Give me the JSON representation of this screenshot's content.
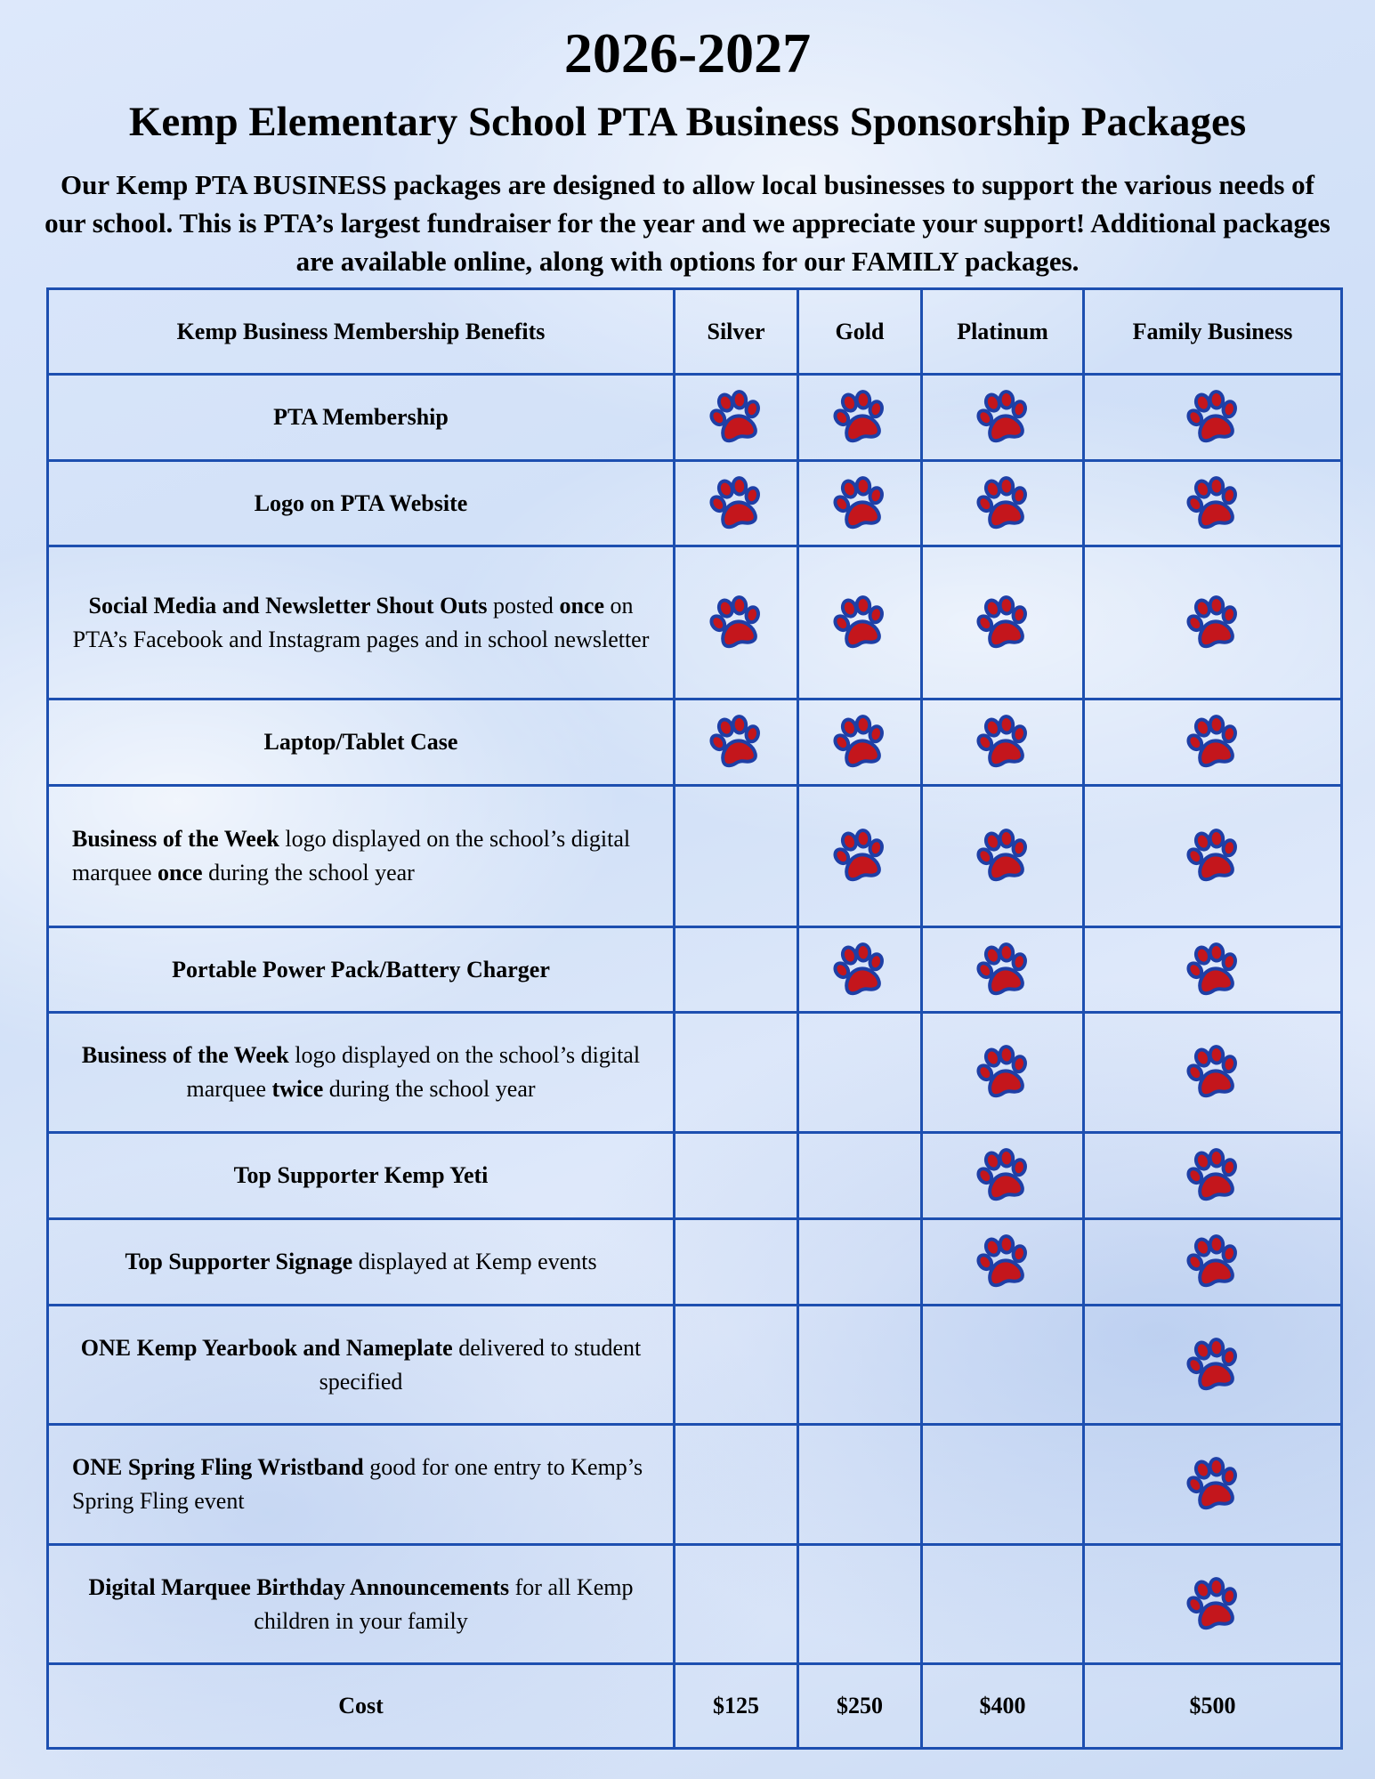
{
  "header": {
    "title": "2026-2027",
    "subtitle": "Kemp Elementary School PTA Business Sponsorship Packages",
    "intro": "Our Kemp PTA BUSINESS packages are designed to allow local businesses to support the various needs of our school. This is PTA’s largest fundraiser for the year and we appreciate your support! Additional packages are available online, along with options for our FAMILY packages."
  },
  "table": {
    "header": [
      "Kemp Business Membership Benefits",
      "Silver",
      "Gold",
      "Platinum",
      "Family Business"
    ],
    "rows": [
      {
        "parts": [
          {
            "text": "PTA Membership",
            "bold": true
          }
        ],
        "included": [
          true,
          true,
          true,
          true
        ]
      },
      {
        "parts": [
          {
            "text": "Logo on PTA Website",
            "bold": true
          }
        ],
        "included": [
          true,
          true,
          true,
          true
        ]
      },
      {
        "parts": [
          {
            "text": "Social Media and Newsletter Shout Outs",
            "bold": true
          },
          {
            "text": " posted ",
            "bold": false
          },
          {
            "text": "once",
            "bold": true
          },
          {
            "text": " on PTA’s Facebook and Instagram pages and in school newsletter",
            "bold": false
          }
        ],
        "included": [
          true,
          true,
          true,
          true
        ]
      },
      {
        "parts": [
          {
            "text": "Laptop/Tablet Case",
            "bold": true
          }
        ],
        "included": [
          true,
          true,
          true,
          true
        ]
      },
      {
        "parts": [
          {
            "text": "Business of the Week",
            "bold": true
          },
          {
            "text": " logo displayed on the school’s digital marquee ",
            "bold": false
          },
          {
            "text": "once",
            "bold": true
          },
          {
            "text": " during the school year",
            "bold": false
          }
        ],
        "align": "left",
        "included": [
          false,
          true,
          true,
          true
        ]
      },
      {
        "parts": [
          {
            "text": "Portable Power Pack/Battery Charger",
            "bold": true
          }
        ],
        "included": [
          false,
          true,
          true,
          true
        ]
      },
      {
        "parts": [
          {
            "text": "Business of the Week",
            "bold": true
          },
          {
            "text": " logo displayed on the school’s digital marquee ",
            "bold": false
          },
          {
            "text": "twice",
            "bold": true
          },
          {
            "text": " during the school year",
            "bold": false
          }
        ],
        "included": [
          false,
          false,
          true,
          true
        ]
      },
      {
        "parts": [
          {
            "text": "Top Supporter Kemp Yeti",
            "bold": true
          }
        ],
        "included": [
          false,
          false,
          true,
          true
        ]
      },
      {
        "parts": [
          {
            "text": "Top Supporter Signage",
            "bold": true
          },
          {
            "text": " displayed at Kemp events",
            "bold": false
          }
        ],
        "included": [
          false,
          false,
          true,
          true
        ]
      },
      {
        "parts": [
          {
            "text": "ONE Kemp Yearbook and Nameplate",
            "bold": true
          },
          {
            "text": " delivered to student specified",
            "bold": false
          }
        ],
        "included": [
          false,
          false,
          false,
          true
        ]
      },
      {
        "parts": [
          {
            "text": "ONE Spring Fling Wristband",
            "bold": true
          },
          {
            "text": " good for one entry to Kemp’s Spring Fling event",
            "bold": false
          }
        ],
        "align": "left",
        "included": [
          false,
          false,
          false,
          true
        ]
      },
      {
        "parts": [
          {
            "text": "Digital Marquee Birthday Announcements",
            "bold": true
          },
          {
            "text": " for all Kemp children in your family",
            "bold": false
          }
        ],
        "included": [
          false,
          false,
          false,
          true
        ]
      }
    ],
    "cost": {
      "label": "Cost",
      "prices": [
        "$125",
        "$250",
        "$400",
        "$500"
      ]
    }
  }
}
